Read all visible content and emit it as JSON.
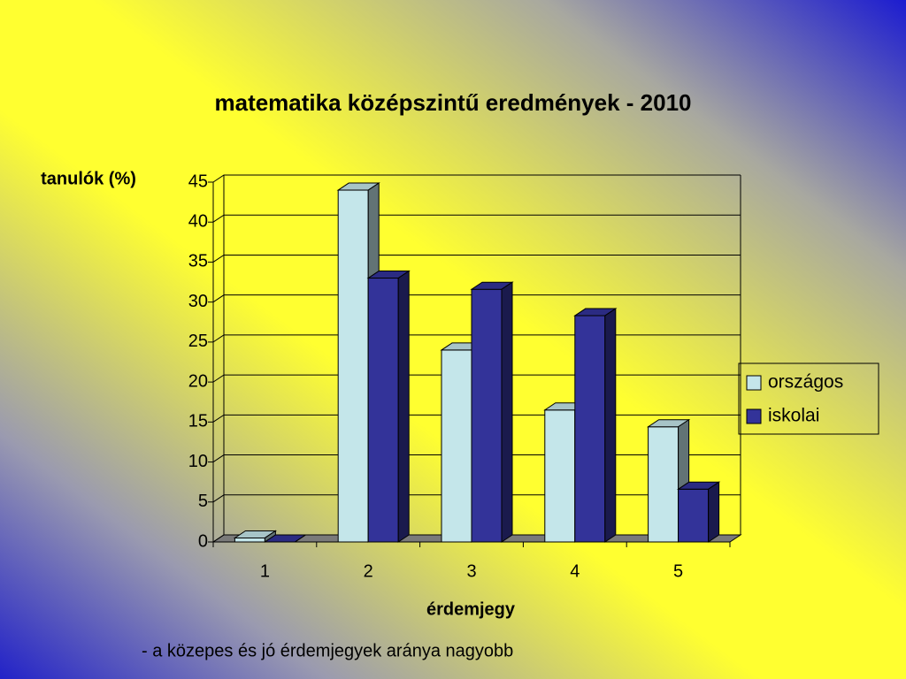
{
  "chart_data": {
    "type": "bar",
    "title": "matematika középszintű eredmények - 2010",
    "y_label": "tanulók (%)",
    "x_label": "érdemjegy",
    "annotation": "- a közepes és jó érdemjegyek aránya nagyobb",
    "categories": [
      "1",
      "2",
      "3",
      "4",
      "5"
    ],
    "series": [
      {
        "name": "országos",
        "color": "#c4e6ea",
        "values": [
          0.5,
          44,
          24,
          16.5,
          14.4
        ]
      },
      {
        "name": "iskolai",
        "color": "#333399",
        "values": [
          0,
          33,
          31.6,
          28.3,
          6.6
        ]
      }
    ],
    "ylim": [
      0,
      45
    ],
    "yticks": [
      0,
      5,
      10,
      15,
      20,
      25,
      30,
      35,
      40,
      45
    ],
    "grid": true,
    "legend": "right"
  }
}
